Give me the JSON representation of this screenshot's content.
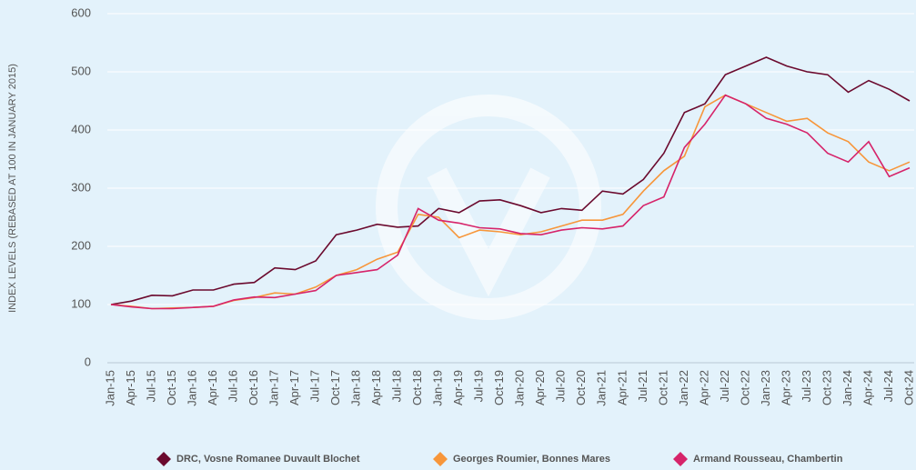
{
  "chart_data": {
    "type": "line",
    "y_label": "INDEX LEVELS (REBASED AT 100 IN JANUARY 2015)",
    "categories": [
      "Jan-15",
      "Apr-15",
      "Jul-15",
      "Oct-15",
      "Jan-16",
      "Apr-16",
      "Jul-16",
      "Oct-16",
      "Jan-17",
      "Apr-17",
      "Jul-17",
      "Oct-17",
      "Jan-18",
      "Apr-18",
      "Jul-18",
      "Oct-18",
      "Jan-19",
      "Apr-19",
      "Jul-19",
      "Oct-19",
      "Jan-20",
      "Apr-20",
      "Jul-20",
      "Oct-20",
      "Jan-21",
      "Apr-21",
      "Jul-21",
      "Oct-21",
      "Jan-22",
      "Apr-22",
      "Jul-22",
      "Oct-22",
      "Jan-23",
      "Apr-23",
      "Jul-23",
      "Oct-23",
      "Jan-24",
      "Apr-24",
      "Jul-24",
      "Oct-24"
    ],
    "series": [
      {
        "name": "DRC, Vosne Romanee Duvault Blochet",
        "color": "#6b0a2e",
        "values": [
          100,
          106,
          116,
          115,
          125,
          125,
          135,
          138,
          163,
          160,
          175,
          220,
          228,
          238,
          233,
          235,
          265,
          258,
          278,
          280,
          270,
          258,
          265,
          262,
          295,
          290,
          315,
          360,
          430,
          445,
          495,
          510,
          525,
          510,
          500,
          495,
          465,
          485,
          470,
          450
        ]
      },
      {
        "name": "Georges Roumier, Bonnes Mares",
        "color": "#f7963a",
        "values": [
          100,
          97,
          93,
          94,
          95,
          97,
          107,
          112,
          120,
          118,
          130,
          150,
          160,
          178,
          190,
          255,
          250,
          215,
          228,
          225,
          220,
          225,
          235,
          245,
          245,
          255,
          295,
          330,
          355,
          440,
          460,
          445,
          430,
          415,
          420,
          395,
          380,
          345,
          330,
          345
        ]
      },
      {
        "name": "Armand Rousseau, Chambertin",
        "color": "#d6246a",
        "values": [
          100,
          96,
          93,
          93,
          95,
          97,
          108,
          113,
          112,
          118,
          124,
          150,
          155,
          160,
          185,
          265,
          245,
          240,
          232,
          230,
          222,
          220,
          228,
          232,
          230,
          235,
          270,
          285,
          370,
          410,
          460,
          445,
          420,
          410,
          395,
          360,
          345,
          380,
          320,
          335
        ]
      }
    ],
    "ylim": [
      0,
      600
    ],
    "yticks": [
      0,
      100,
      200,
      300,
      400,
      500,
      600
    ],
    "grid": true
  }
}
